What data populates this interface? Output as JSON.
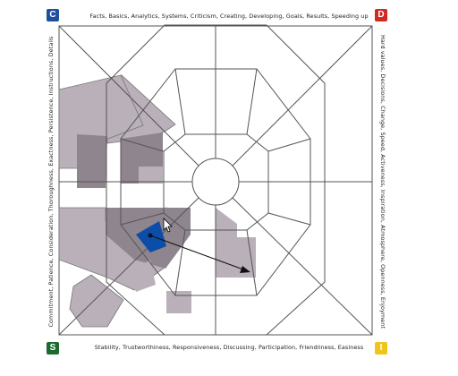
{
  "corners": {
    "top_left": {
      "letter": "C",
      "color": "#1f4ea1"
    },
    "top_right": {
      "letter": "D",
      "color": "#d02a22"
    },
    "bottom_left": {
      "letter": "S",
      "color": "#1b6b2e"
    },
    "bottom_right": {
      "letter": "I",
      "color": "#f0c419"
    }
  },
  "edges": {
    "top": "Facts, Basics, Analytics, Systems, Criticism, Creating, Developing, Goals, Results, Speeding up",
    "right": "Hard values, Decisions, Change, Speed, Activeness, Inspiration, Atmosphere, Openness, Enjoyment",
    "bottom": "Stability, Trustworthiness, Responsiveness, Discussing, Participation, Friendliness, Easiness",
    "left": "Commitment, Patience, Consideration, Thoroughness, Exactness, Persistence, Instructions, Details"
  },
  "colors": {
    "shade_light": "#b9b0b9",
    "shade_dark": "#8e858e",
    "selected": "#0b4da8",
    "grid_line": "#555555",
    "arrow": "#111111"
  }
}
